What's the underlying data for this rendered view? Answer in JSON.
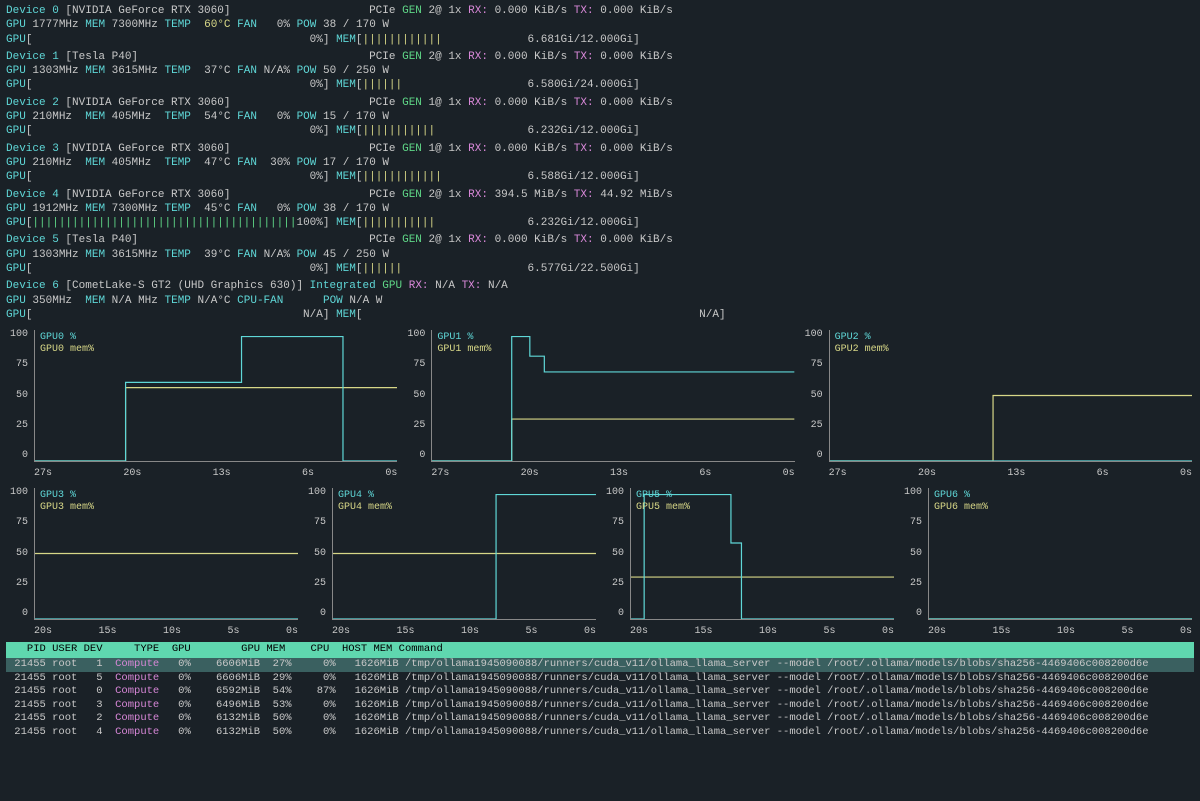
{
  "colors": {
    "bg": "#1a2127",
    "fg": "#c8c8c8",
    "cyan": "#5fd7d7",
    "green": "#5fd787",
    "purple": "#d787d7",
    "yellow": "#d7d787",
    "header_bg": "#5fd7af"
  },
  "devices": [
    {
      "idx": 0,
      "name_label": "Device 0",
      "model": "[NVIDIA GeForce RTX 3060]",
      "pcie": "PCIe",
      "gen_label": "GEN",
      "gen": "2@ 1x",
      "rx_label": "RX:",
      "rx": "0.000 KiB/s",
      "tx_label": "TX:",
      "tx": "0.000 KiB/s",
      "gpu_label": "GPU",
      "gpu_clk": "1777MHz",
      "mem_label": "MEM",
      "mem_clk": "7300MHz",
      "temp_label": "TEMP",
      "temp": "60°C",
      "fan_label": "FAN",
      "fan": "0%",
      "pow_label": "POW",
      "pow": "38 / 170 W",
      "gpu_bar_pct": 0,
      "gpu_bar_text": "0%",
      "mem_bar_pct": 55,
      "mem_bar_text": "6.681Gi/12.000Gi"
    },
    {
      "idx": 1,
      "name_label": "Device 1",
      "model": "[Tesla P40]",
      "pcie": "PCIe",
      "gen_label": "GEN",
      "gen": "2@ 1x",
      "rx_label": "RX:",
      "rx": "0.000 KiB/s",
      "tx_label": "TX:",
      "tx": "0.000 KiB/s",
      "gpu_label": "GPU",
      "gpu_clk": "1303MHz",
      "mem_label": "MEM",
      "mem_clk": "3615MHz",
      "temp_label": "TEMP",
      "temp": "37°C",
      "fan_label": "FAN",
      "fan": "N/A%",
      "pow_label": "POW",
      "pow": "50 / 250 W",
      "gpu_bar_pct": 0,
      "gpu_bar_text": "0%",
      "mem_bar_pct": 27,
      "mem_bar_text": "6.580Gi/24.000Gi"
    },
    {
      "idx": 2,
      "name_label": "Device 2",
      "model": "[NVIDIA GeForce RTX 3060]",
      "pcie": "PCIe",
      "gen_label": "GEN",
      "gen": "1@ 1x",
      "rx_label": "RX:",
      "rx": "0.000 KiB/s",
      "tx_label": "TX:",
      "tx": "0.000 KiB/s",
      "gpu_label": "GPU",
      "gpu_clk": "210MHz",
      "mem_label": "MEM",
      "mem_clk": "405MHz",
      "temp_label": "TEMP",
      "temp": "54°C",
      "fan_label": "FAN",
      "fan": "0%",
      "pow_label": "POW",
      "pow": "15 / 170 W",
      "gpu_bar_pct": 0,
      "gpu_bar_text": "0%",
      "mem_bar_pct": 52,
      "mem_bar_text": "6.232Gi/12.000Gi"
    },
    {
      "idx": 3,
      "name_label": "Device 3",
      "model": "[NVIDIA GeForce RTX 3060]",
      "pcie": "PCIe",
      "gen_label": "GEN",
      "gen": "1@ 1x",
      "rx_label": "RX:",
      "rx": "0.000 KiB/s",
      "tx_label": "TX:",
      "tx": "0.000 KiB/s",
      "gpu_label": "GPU",
      "gpu_clk": "210MHz",
      "mem_label": "MEM",
      "mem_clk": "405MHz",
      "temp_label": "TEMP",
      "temp": "47°C",
      "fan_label": "FAN",
      "fan": "30%",
      "pow_label": "POW",
      "pow": "17 / 170 W",
      "gpu_bar_pct": 0,
      "gpu_bar_text": "0%",
      "mem_bar_pct": 55,
      "mem_bar_text": "6.588Gi/12.000Gi"
    },
    {
      "idx": 4,
      "name_label": "Device 4",
      "model": "[NVIDIA GeForce RTX 3060]",
      "pcie": "PCIe",
      "gen_label": "GEN",
      "gen": "2@ 1x",
      "rx_label": "RX:",
      "rx": "394.5 MiB/s",
      "tx_label": "TX:",
      "tx": "44.92 MiB/s",
      "gpu_label": "GPU",
      "gpu_clk": "1912MHz",
      "mem_label": "MEM",
      "mem_clk": "7300MHz",
      "temp_label": "TEMP",
      "temp": "45°C",
      "fan_label": "FAN",
      "fan": "0%",
      "pow_label": "POW",
      "pow": "38 / 170 W",
      "gpu_bar_pct": 100,
      "gpu_bar_text": "100%",
      "mem_bar_pct": 52,
      "mem_bar_text": "6.232Gi/12.000Gi"
    },
    {
      "idx": 5,
      "name_label": "Device 5",
      "model": "[Tesla P40]",
      "pcie": "PCIe",
      "gen_label": "GEN",
      "gen": "2@ 1x",
      "rx_label": "RX:",
      "rx": "0.000 KiB/s",
      "tx_label": "TX:",
      "tx": "0.000 KiB/s",
      "gpu_label": "GPU",
      "gpu_clk": "1303MHz",
      "mem_label": "MEM",
      "mem_clk": "3615MHz",
      "temp_label": "TEMP",
      "temp": "39°C",
      "fan_label": "FAN",
      "fan": "N/A%",
      "pow_label": "POW",
      "pow": "45 / 250 W",
      "gpu_bar_pct": 0,
      "gpu_bar_text": "0%",
      "mem_bar_pct": 29,
      "mem_bar_text": "6.577Gi/22.500Gi"
    },
    {
      "idx": 6,
      "name_label": "Device 6",
      "model": "[CometLake-S GT2 (UHD Graphics 630)]",
      "is_integrated": true,
      "integrated_label": "Integrated",
      "gpu_word": "GPU",
      "rx_label": "RX:",
      "rx": "N/A",
      "tx_label": "TX:",
      "tx": "N/A",
      "gpu_label": "GPU",
      "gpu_clk": "350MHz",
      "mem_label": "MEM",
      "mem_clk": "N/A MHz",
      "temp_label": "TEMP",
      "temp": "N/A°C",
      "fan_label": "CPU-FAN",
      "fan": "",
      "pow_label": "POW",
      "pow": "N/A W",
      "gpu_bar_text": "N/A",
      "mem_bar_text": "N/A"
    }
  ],
  "charts": {
    "y_ticks": [
      "100",
      "75",
      "50",
      "25",
      "0"
    ],
    "row1_x_ticks": [
      "27s",
      "20s",
      "13s",
      "6s",
      "0s"
    ],
    "row2_x_ticks": [
      "20s",
      "15s",
      "10s",
      "5s",
      "0s"
    ],
    "items": [
      {
        "id": "GPU0",
        "gpu_label": "GPU0 %",
        "mem_label": "GPU0 mem%",
        "gpu_poly": "0,100 25,100 25,40 57,40 57,5 85,5 85,100 100,100",
        "mem_poly": "0,100 25,100 25,44 100,44"
      },
      {
        "id": "GPU1",
        "gpu_label": "GPU1 %",
        "mem_label": "GPU1 mem%",
        "gpu_poly": "0,100 22,100 22,5 27,5 27,20 31,20 31,32 100,32",
        "mem_poly": "0,100 22,100 22,68 100,68"
      },
      {
        "id": "GPU2",
        "gpu_label": "GPU2 %",
        "mem_label": "GPU2 mem%",
        "gpu_poly": "0,100 100,100",
        "mem_poly": "0,100 45,100 45,50 100,50"
      },
      {
        "id": "GPU3",
        "gpu_label": "GPU3 %",
        "mem_label": "GPU3 mem%",
        "gpu_poly": "0,100 100,100",
        "mem_poly": "0,50 100,50"
      },
      {
        "id": "GPU4",
        "gpu_label": "GPU4 %",
        "mem_label": "GPU4 mem%",
        "gpu_poly": "0,100 62,100 62,5 100,5",
        "mem_poly": "0,50 100,50"
      },
      {
        "id": "GPU5",
        "gpu_label": "GPU5 %",
        "mem_label": "GPU5 mem%",
        "gpu_poly": "0,100 5,100 5,5 38,5 38,42 42,42 42,100 100,100",
        "mem_poly": "0,68 100,68"
      },
      {
        "id": "GPU6",
        "gpu_label": "GPU6 %",
        "mem_label": "GPU6 mem%",
        "gpu_poly": "0,100 100,100",
        "mem_poly": "0,100 100,100"
      }
    ]
  },
  "proc_table": {
    "header": "   PID USER DEV     TYPE  GPU        GPU MEM    CPU  HOST MEM Command",
    "rows": [
      {
        "selected": true,
        "pid": "21455",
        "user": "root",
        "dev": "1",
        "type": "Compute",
        "gpu": "0%",
        "gpu_mem": "6606MiB",
        "mem_pct": "27%",
        "cpu": "0%",
        "host_mem": "1626MiB",
        "cmd": "/tmp/ollama1945090088/runners/cuda_v11/ollama_llama_server --model /root/.ollama/models/blobs/sha256-4469406c008200d6e"
      },
      {
        "selected": false,
        "pid": "21455",
        "user": "root",
        "dev": "5",
        "type": "Compute",
        "gpu": "0%",
        "gpu_mem": "6606MiB",
        "mem_pct": "29%",
        "cpu": "0%",
        "host_mem": "1626MiB",
        "cmd": "/tmp/ollama1945090088/runners/cuda_v11/ollama_llama_server --model /root/.ollama/models/blobs/sha256-4469406c008200d6e"
      },
      {
        "selected": false,
        "pid": "21455",
        "user": "root",
        "dev": "0",
        "type": "Compute",
        "gpu": "0%",
        "gpu_mem": "6592MiB",
        "mem_pct": "54%",
        "cpu": "87%",
        "host_mem": "1626MiB",
        "cmd": "/tmp/ollama1945090088/runners/cuda_v11/ollama_llama_server --model /root/.ollama/models/blobs/sha256-4469406c008200d6e"
      },
      {
        "selected": false,
        "pid": "21455",
        "user": "root",
        "dev": "3",
        "type": "Compute",
        "gpu": "0%",
        "gpu_mem": "6496MiB",
        "mem_pct": "53%",
        "cpu": "0%",
        "host_mem": "1626MiB",
        "cmd": "/tmp/ollama1945090088/runners/cuda_v11/ollama_llama_server --model /root/.ollama/models/blobs/sha256-4469406c008200d6e"
      },
      {
        "selected": false,
        "pid": "21455",
        "user": "root",
        "dev": "2",
        "type": "Compute",
        "gpu": "0%",
        "gpu_mem": "6132MiB",
        "mem_pct": "50%",
        "cpu": "0%",
        "host_mem": "1626MiB",
        "cmd": "/tmp/ollama1945090088/runners/cuda_v11/ollama_llama_server --model /root/.ollama/models/blobs/sha256-4469406c008200d6e"
      },
      {
        "selected": false,
        "pid": "21455",
        "user": "root",
        "dev": "4",
        "type": "Compute",
        "gpu": "0%",
        "gpu_mem": "6132MiB",
        "mem_pct": "50%",
        "cpu": "0%",
        "host_mem": "1626MiB",
        "cmd": "/tmp/ollama1945090088/runners/cuda_v11/ollama_llama_server --model /root/.ollama/models/blobs/sha256-4469406c008200d6e"
      }
    ]
  }
}
